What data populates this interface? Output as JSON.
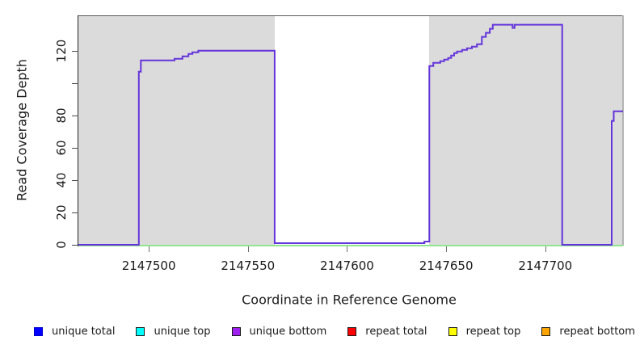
{
  "chart_data": {
    "type": "line",
    "title": "",
    "xlabel": "Coordinate in Reference Genome",
    "ylabel": "Read Coverage Depth",
    "x_range": [
      2147464.5,
      2147739.2
    ],
    "y_range": [
      0,
      141.8
    ],
    "grid": "off",
    "x_ticks": [
      {
        "value": 2147500,
        "label": "2147500"
      },
      {
        "value": 2147550,
        "label": "2147550"
      },
      {
        "value": 2147600,
        "label": "2147600"
      },
      {
        "value": 2147650,
        "label": "2147650"
      },
      {
        "value": 2147700,
        "label": "2147700"
      }
    ],
    "y_ticks": [
      {
        "value": 0,
        "label": "0"
      },
      {
        "value": 20,
        "label": "20"
      },
      {
        "value": 40,
        "label": "40"
      },
      {
        "value": 60,
        "label": "60"
      },
      {
        "value": 80,
        "label": "80"
      },
      {
        "value": 100,
        "label": ""
      },
      {
        "value": 120,
        "label": "120"
      }
    ],
    "shaded_regions": [
      {
        "x0": 2147464.5,
        "x1": 2147563.5,
        "color": "#DBDBDB"
      },
      {
        "x0": 2147641.5,
        "x1": 2147739.2,
        "color": "#DBDBDB"
      }
    ],
    "series": [
      {
        "name": "unique bottom",
        "line_color": "#6435DB",
        "interpolation": "step-after",
        "step_points": [
          [
            2147464.5,
            0
          ],
          [
            2147495,
            107
          ],
          [
            2147496,
            114
          ],
          [
            2147513,
            115
          ],
          [
            2147517,
            116.5
          ],
          [
            2147520,
            118
          ],
          [
            2147522,
            119
          ],
          [
            2147525,
            120
          ],
          [
            2147563.5,
            1
          ],
          [
            2147639,
            2
          ],
          [
            2147641.5,
            110.5
          ],
          [
            2147643.5,
            112.5
          ],
          [
            2147647,
            113.5
          ],
          [
            2147649,
            114.5
          ],
          [
            2147651,
            115.5
          ],
          [
            2147652.5,
            117
          ],
          [
            2147654,
            118.5
          ],
          [
            2147655.5,
            119.5
          ],
          [
            2147658,
            120.5
          ],
          [
            2147660.5,
            121.5
          ],
          [
            2147663,
            122.5
          ],
          [
            2147665.5,
            124
          ],
          [
            2147668,
            128.5
          ],
          [
            2147670,
            131
          ],
          [
            2147672,
            133.5
          ],
          [
            2147673.5,
            136
          ],
          [
            2147683.5,
            134
          ],
          [
            2147684.5,
            136
          ],
          [
            2147708.5,
            0
          ],
          [
            2147733.5,
            76.5
          ],
          [
            2147734.5,
            82.5
          ]
        ]
      },
      {
        "name": "unique top",
        "line_color": "#8FE68F",
        "constant_y": 0
      }
    ],
    "legend_position": "bottom"
  },
  "legend": {
    "items": [
      {
        "label": "unique total",
        "fill": "#0000FF",
        "border": "#0000CC"
      },
      {
        "label": "unique top",
        "fill": "#00FFFF",
        "border": "#1A1A1A"
      },
      {
        "label": "unique bottom",
        "fill": "#A020F0",
        "border": "#1A1A1A"
      },
      {
        "label": "repeat total",
        "fill": "#FF0000",
        "border": "#1A1A1A"
      },
      {
        "label": "repeat top",
        "fill": "#FFFF00",
        "border": "#1A1A1A"
      },
      {
        "label": "repeat bottom",
        "fill": "#FFA500",
        "border": "#1A1A1A"
      }
    ]
  }
}
